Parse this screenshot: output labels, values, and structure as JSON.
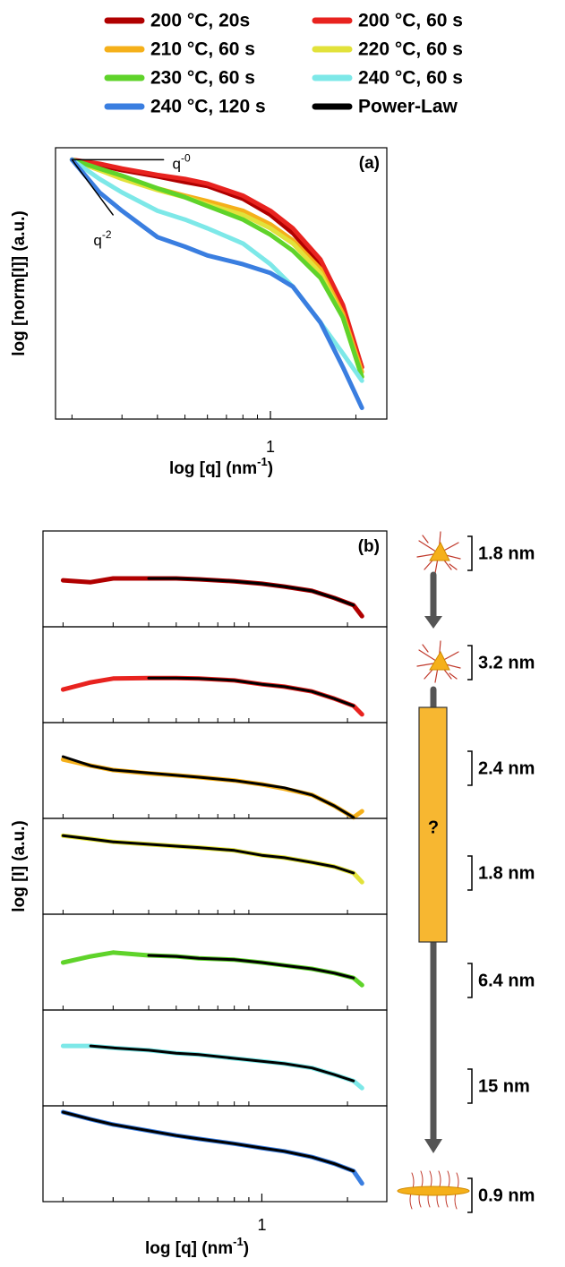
{
  "chart_data": [
    {
      "type": "line",
      "label": "(a)",
      "xlabel": {
        "text": "log [q] (nm",
        "sup": "-1",
        "close": ")"
      },
      "ylabel": "log [norm[I]] (a.u.)",
      "xscale": "log",
      "xlim": [
        0.175,
        2.57
      ],
      "xticks": [
        1
      ],
      "xminor": [
        0.2,
        0.3,
        0.4,
        0.5,
        0.6,
        0.7,
        0.8,
        0.9,
        2
      ],
      "ylim": [
        -3.2,
        0.2
      ],
      "x": [
        0.2,
        0.25,
        0.3,
        0.4,
        0.5,
        0.6,
        0.8,
        1.0,
        1.2,
        1.5,
        1.8,
        2.1
      ],
      "series": [
        {
          "name": "200 °C, 20s",
          "color": "#b00000",
          "values": [
            0.05,
            -0.02,
            -0.08,
            -0.16,
            -0.23,
            -0.28,
            -0.44,
            -0.64,
            -0.87,
            -1.26,
            -1.82,
            -2.55
          ]
        },
        {
          "name": "200 °C, 60 s",
          "color": "#e8231f",
          "values": [
            0.05,
            0,
            -0.06,
            -0.14,
            -0.19,
            -0.25,
            -0.4,
            -0.59,
            -0.81,
            -1.2,
            -1.77,
            -2.55
          ]
        },
        {
          "name": "210 °C, 60 s",
          "color": "#f5b01a",
          "values": [
            0.05,
            -0.08,
            -0.17,
            -0.31,
            -0.4,
            -0.47,
            -0.59,
            -0.76,
            -0.96,
            -1.32,
            -1.88,
            -2.61
          ]
        },
        {
          "name": "220 °C, 60 s",
          "color": "#e2e23a",
          "values": [
            0.05,
            -0.08,
            -0.19,
            -0.33,
            -0.42,
            -0.51,
            -0.64,
            -0.81,
            -1.0,
            -1.37,
            -1.93,
            -2.67
          ]
        },
        {
          "name": "230 °C, 60 s",
          "color": "#5fd32a",
          "values": [
            0.05,
            -0.06,
            -0.15,
            -0.31,
            -0.42,
            -0.53,
            -0.7,
            -0.89,
            -1.09,
            -1.43,
            -1.93,
            -2.67
          ]
        },
        {
          "name": "240 °C, 60 s",
          "color": "#7de8e8",
          "values": [
            0.05,
            -0.19,
            -0.36,
            -0.59,
            -0.7,
            -0.81,
            -1.0,
            -1.26,
            -1.54,
            -1.99,
            -2.38,
            -2.72
          ]
        },
        {
          "name": "240 °C, 120 s",
          "color": "#3a7ee0",
          "values": [
            0.05,
            -0.36,
            -0.59,
            -0.92,
            -1.04,
            -1.15,
            -1.26,
            -1.37,
            -1.54,
            -1.99,
            -2.55,
            -3.06
          ]
        }
      ],
      "power_law": {
        "name": "Power-Law",
        "color": "#000000",
        "lines": [
          {
            "label": {
              "base": "q",
              "exp": "-0"
            },
            "x": [
              0.2,
              0.42
            ],
            "y": [
              0.05,
              0.05
            ]
          },
          {
            "label": {
              "base": "q",
              "exp": "-2"
            },
            "x": [
              0.2,
              0.279
            ],
            "y": [
              0.05,
              -0.64
            ]
          }
        ]
      }
    },
    {
      "type": "stacked-line",
      "label": "(b)",
      "xlabel": {
        "text": "log [q] (nm",
        "sup": "-1",
        "close": ")"
      },
      "ylabel": "log [I] (a.u.)",
      "xscale": "log",
      "xlim": [
        0.17,
        2.75
      ],
      "xticks": [
        1
      ],
      "xminor": [
        0.2,
        0.3,
        0.4,
        0.5,
        0.6,
        0.7,
        0.8,
        0.9,
        2
      ],
      "ylim": [
        -1,
        1
      ],
      "fit_color": "#000000",
      "x": [
        0.2,
        0.25,
        0.3,
        0.4,
        0.5,
        0.6,
        0.8,
        1.0,
        1.2,
        1.5,
        1.8,
        2.1,
        2.25
      ],
      "panels": [
        {
          "color": "#b00000",
          "values": [
            -0.03,
            -0.07,
            0.01,
            0.01,
            0.01,
            -0.01,
            -0.05,
            -0.1,
            -0.16,
            -0.25,
            -0.4,
            -0.55,
            -0.78
          ],
          "fit": [
            null,
            null,
            null,
            0.01,
            0.01,
            -0.01,
            -0.05,
            -0.1,
            -0.16,
            -0.25,
            -0.4,
            -0.55,
            null
          ]
        },
        {
          "color": "#e8231f",
          "values": [
            -0.31,
            -0.16,
            -0.08,
            -0.07,
            -0.07,
            -0.08,
            -0.12,
            -0.2,
            -0.25,
            -0.35,
            -0.5,
            -0.65,
            -0.83
          ],
          "fit": [
            null,
            null,
            null,
            -0.07,
            -0.07,
            -0.08,
            -0.12,
            -0.2,
            -0.25,
            -0.35,
            -0.5,
            -0.65,
            null
          ]
        },
        {
          "color": "#f5b01a",
          "values": [
            0.23,
            0.1,
            0.01,
            -0.06,
            -0.1,
            -0.14,
            -0.21,
            -0.29,
            -0.38,
            -0.51,
            -0.74,
            -0.98,
            -0.85
          ],
          "fit": [
            0.29,
            0.1,
            0.01,
            -0.05,
            -0.1,
            -0.14,
            -0.21,
            -0.29,
            -0.36,
            -0.51,
            -0.74,
            -0.98,
            null
          ]
        },
        {
          "color": "#e2e23a",
          "values": [
            0.64,
            0.57,
            0.51,
            0.46,
            0.42,
            0.39,
            0.33,
            0.23,
            0.18,
            0.08,
            -0.01,
            -0.14,
            -0.33
          ],
          "fit": [
            0.64,
            0.57,
            0.51,
            0.46,
            0.42,
            0.39,
            0.33,
            0.23,
            0.18,
            0.08,
            -0.01,
            -0.14,
            null
          ]
        },
        {
          "color": "#5fd32a",
          "values": [
            -0.01,
            0.12,
            0.2,
            0.14,
            0.12,
            0.08,
            0.05,
            -0.01,
            -0.07,
            -0.14,
            -0.23,
            -0.33,
            -0.48
          ],
          "fit": [
            null,
            null,
            null,
            0.14,
            0.12,
            0.08,
            0.05,
            -0.01,
            -0.07,
            -0.14,
            -0.23,
            -0.33,
            null
          ]
        },
        {
          "color": "#7de8e8",
          "values": [
            0.25,
            0.25,
            0.21,
            0.16,
            0.1,
            0.07,
            -0.01,
            -0.07,
            -0.12,
            -0.21,
            -0.35,
            -0.48,
            -0.63
          ],
          "fit": [
            null,
            0.25,
            0.21,
            0.16,
            0.1,
            0.07,
            -0.01,
            -0.07,
            -0.12,
            -0.21,
            -0.35,
            -0.48,
            null
          ]
        },
        {
          "color": "#3a7ee0",
          "values": [
            0.87,
            0.72,
            0.61,
            0.48,
            0.38,
            0.31,
            0.21,
            0.12,
            0.05,
            -0.07,
            -0.21,
            -0.36,
            -0.62
          ],
          "fit": [
            0.87,
            0.72,
            0.61,
            0.48,
            0.38,
            0.31,
            0.21,
            0.12,
            0.05,
            -0.07,
            -0.21,
            -0.36,
            null
          ]
        }
      ]
    }
  ],
  "schematic": {
    "sizes": [
      "1.8 nm",
      "3.2 nm",
      "2.4 nm",
      "1.8 nm",
      "6.4 nm",
      "15 nm",
      "0.9 nm"
    ],
    "unknown": "?"
  }
}
